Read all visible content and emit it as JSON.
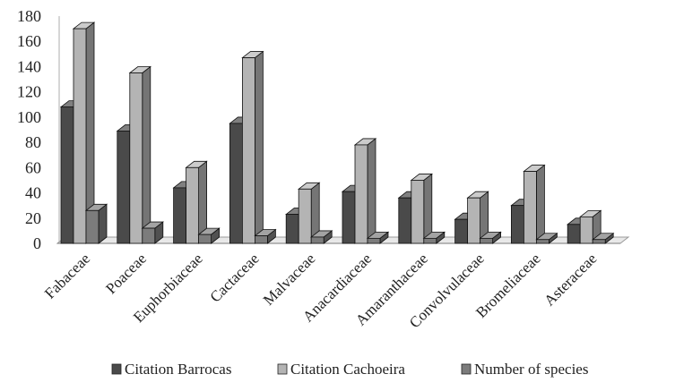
{
  "chart_data": {
    "type": "bar",
    "title": "",
    "xlabel": "",
    "ylabel": "",
    "ylim": [
      0,
      180
    ],
    "yticks": [
      0,
      20,
      40,
      60,
      80,
      100,
      120,
      140,
      160,
      180
    ],
    "grid": false,
    "legend_position": "bottom",
    "style": "3d-clustered-column",
    "categories": [
      "Fabaceae",
      "Poaceae",
      "Euphorbiaceae",
      "Cactaceae",
      "Malvaceae",
      "Anacardiaceae",
      "Amaranthaceae",
      "Convolvulaceae",
      "Bromeliaceae",
      "Asteraceae"
    ],
    "series": [
      {
        "name": "Citation Barrocas",
        "color": "#4a4a4a",
        "values": [
          108,
          89,
          44,
          95,
          23,
          41,
          36,
          19,
          30,
          15
        ]
      },
      {
        "name": "Citation Cachoeira",
        "color": "#b4b4b4",
        "values": [
          170,
          135,
          60,
          147,
          43,
          78,
          50,
          36,
          57,
          21
        ]
      },
      {
        "name": "Number of species",
        "color": "#7c7c7c",
        "values": [
          26,
          12,
          7,
          6,
          5,
          4,
          4,
          4,
          3,
          3
        ]
      }
    ]
  }
}
